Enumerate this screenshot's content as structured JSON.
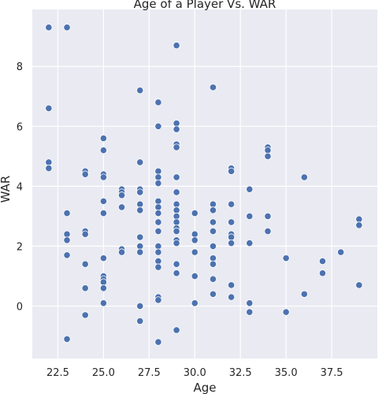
{
  "chart_data": {
    "type": "scatter",
    "title": "Age of a Player Vs. WAR",
    "xlabel": "Age",
    "ylabel": "WAR",
    "xlim": [
      21.1,
      40.0
    ],
    "ylim": [
      -1.75,
      9.9
    ],
    "xticks": [
      22.5,
      25.0,
      27.5,
      30.0,
      32.5,
      35.0,
      37.5
    ],
    "xtick_labels": [
      "22.5",
      "25.0",
      "27.5",
      "30.0",
      "32.5",
      "35.0",
      "37.5"
    ],
    "yticks": [
      0,
      2,
      4,
      6,
      8
    ],
    "ytick_labels": [
      "0",
      "2",
      "4",
      "6",
      "8"
    ],
    "grid": true,
    "marker_color": "#4c72b0",
    "series": [
      {
        "points": [
          [
            22,
            9.3
          ],
          [
            22,
            6.6
          ],
          [
            22,
            4.8
          ],
          [
            22,
            4.6
          ],
          [
            23,
            9.3
          ],
          [
            23,
            3.1
          ],
          [
            23,
            2.4
          ],
          [
            23,
            2.2
          ],
          [
            23,
            1.7
          ],
          [
            23,
            -1.1
          ],
          [
            24,
            4.5
          ],
          [
            24,
            4.4
          ],
          [
            24,
            2.5
          ],
          [
            24,
            2.4
          ],
          [
            24,
            1.4
          ],
          [
            24,
            0.6
          ],
          [
            24,
            -0.3
          ],
          [
            25,
            5.6
          ],
          [
            25,
            5.2
          ],
          [
            25,
            4.4
          ],
          [
            25,
            4.3
          ],
          [
            25,
            3.5
          ],
          [
            25,
            3.1
          ],
          [
            25,
            1.6
          ],
          [
            25,
            1.0
          ],
          [
            25,
            0.9
          ],
          [
            25,
            0.8
          ],
          [
            25,
            0.6
          ],
          [
            25,
            0.1
          ],
          [
            26,
            3.9
          ],
          [
            26,
            3.8
          ],
          [
            26,
            3.7
          ],
          [
            26,
            3.3
          ],
          [
            26,
            1.9
          ],
          [
            26,
            1.8
          ],
          [
            27,
            7.2
          ],
          [
            27,
            4.8
          ],
          [
            27,
            3.9
          ],
          [
            27,
            3.8
          ],
          [
            27,
            3.4
          ],
          [
            27,
            3.2
          ],
          [
            27,
            2.3
          ],
          [
            27,
            2.0
          ],
          [
            27,
            1.8
          ],
          [
            27,
            0.0
          ],
          [
            27,
            -0.5
          ],
          [
            28,
            6.8
          ],
          [
            28,
            6.0
          ],
          [
            28,
            4.5
          ],
          [
            28,
            4.3
          ],
          [
            28,
            4.1
          ],
          [
            28,
            3.5
          ],
          [
            28,
            3.3
          ],
          [
            28,
            3.1
          ],
          [
            28,
            2.8
          ],
          [
            28,
            2.5
          ],
          [
            28,
            2.0
          ],
          [
            28,
            1.8
          ],
          [
            28,
            1.5
          ],
          [
            28,
            1.3
          ],
          [
            28,
            0.3
          ],
          [
            28,
            0.2
          ],
          [
            28,
            -1.2
          ],
          [
            29,
            8.7
          ],
          [
            29,
            6.1
          ],
          [
            29,
            5.9
          ],
          [
            29,
            5.4
          ],
          [
            29,
            5.3
          ],
          [
            29,
            4.3
          ],
          [
            29,
            3.8
          ],
          [
            29,
            3.4
          ],
          [
            29,
            3.2
          ],
          [
            29,
            3.0
          ],
          [
            29,
            2.8
          ],
          [
            29,
            2.6
          ],
          [
            29,
            2.5
          ],
          [
            29,
            2.2
          ],
          [
            29,
            2.1
          ],
          [
            29,
            1.4
          ],
          [
            29,
            1.1
          ],
          [
            29,
            -0.8
          ],
          [
            30,
            3.1
          ],
          [
            30,
            2.4
          ],
          [
            30,
            2.2
          ],
          [
            30,
            1.8
          ],
          [
            30,
            1.0
          ],
          [
            30,
            0.1
          ],
          [
            31,
            7.3
          ],
          [
            31,
            3.4
          ],
          [
            31,
            3.2
          ],
          [
            31,
            2.8
          ],
          [
            31,
            2.5
          ],
          [
            31,
            2.0
          ],
          [
            31,
            1.6
          ],
          [
            31,
            1.4
          ],
          [
            31,
            0.9
          ],
          [
            31,
            0.4
          ],
          [
            32,
            4.6
          ],
          [
            32,
            4.5
          ],
          [
            32,
            3.4
          ],
          [
            32,
            2.8
          ],
          [
            32,
            2.4
          ],
          [
            32,
            2.3
          ],
          [
            32,
            2.1
          ],
          [
            32,
            0.7
          ],
          [
            32,
            0.3
          ],
          [
            33,
            3.9
          ],
          [
            33,
            3.0
          ],
          [
            33,
            2.1
          ],
          [
            33,
            0.1
          ],
          [
            33,
            -0.2
          ],
          [
            34,
            5.3
          ],
          [
            34,
            5.2
          ],
          [
            34,
            5.0
          ],
          [
            34,
            3.0
          ],
          [
            34,
            2.5
          ],
          [
            35,
            1.6
          ],
          [
            35,
            -0.2
          ],
          [
            36,
            4.3
          ],
          [
            36,
            0.4
          ],
          [
            37,
            1.5
          ],
          [
            37,
            1.1
          ],
          [
            38,
            1.8
          ],
          [
            39,
            2.9
          ],
          [
            39,
            2.7
          ],
          [
            39,
            0.7
          ]
        ]
      }
    ]
  }
}
